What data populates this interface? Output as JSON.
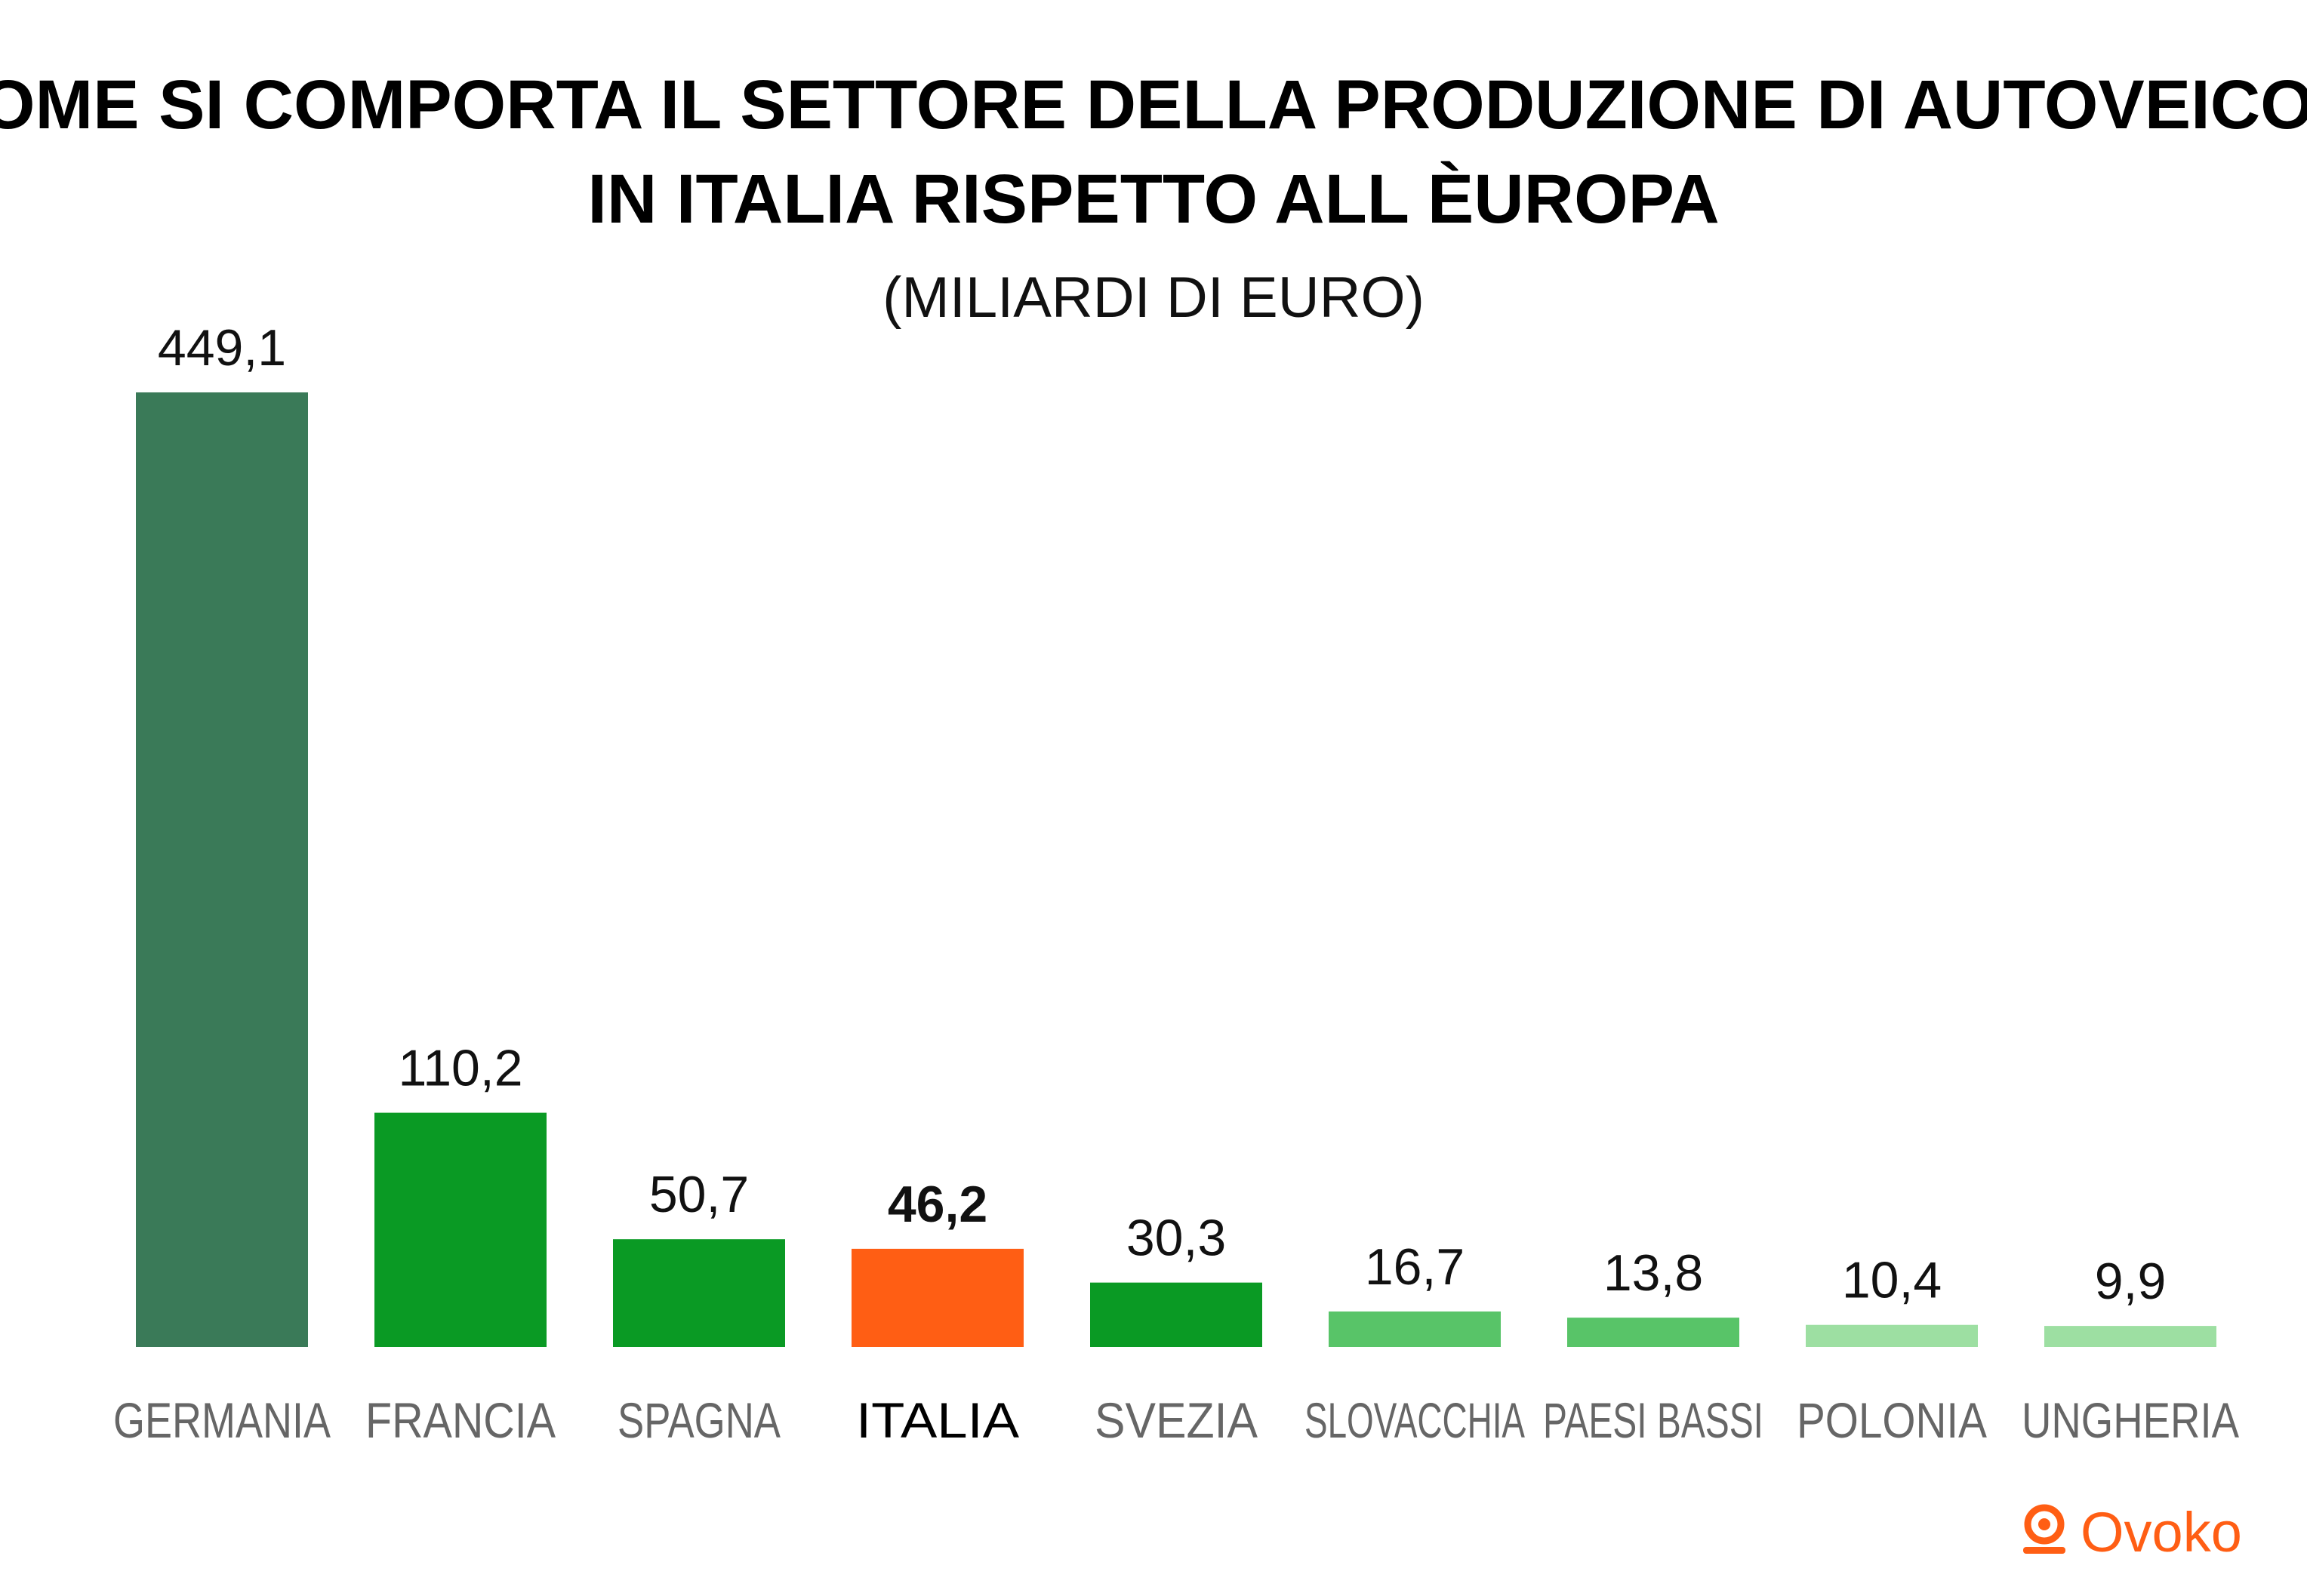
{
  "chart_data": {
    "type": "bar",
    "title_lines": [
      "COME SI COMPORTA IL SETTORE DELLA PRODUZIONE DI AUTOVEICOLI",
      "IN ITALIA RISPETTO ALL ÈUROPA"
    ],
    "subtitle": "(MILIARDI DI EURO)",
    "categories": [
      "GERMANIA",
      "FRANCIA",
      "SPAGNA",
      "ITALIA",
      "SVEZIA",
      "SLOVACCHIA",
      "PAESI BASSI",
      "POLONIA",
      "UNGHERIA"
    ],
    "values": [
      449.1,
      110.2,
      50.7,
      46.2,
      30.3,
      16.7,
      13.8,
      10.4,
      9.9
    ],
    "value_labels": [
      "449,1",
      "110,2",
      "50,7",
      "46,2",
      "30,3",
      "16,7",
      "13,8",
      "10,4",
      "9,9"
    ],
    "bar_colors": [
      "#3a7a58",
      "#0a9a24",
      "#0a9a24",
      "#ff5e14",
      "#0a9a24",
      "#58c468",
      "#58c468",
      "#9ddfa2",
      "#9ddfa2"
    ],
    "highlight_category": "ITALIA",
    "ylim": [
      0,
      449.1
    ],
    "grid": false,
    "legend": "none"
  },
  "brand": {
    "name": "Ovoko",
    "icon": "ovoko-logo-icon",
    "color": "#ff5e14"
  }
}
